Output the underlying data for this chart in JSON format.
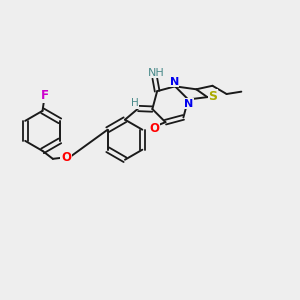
{
  "background_color": "#eeeeee",
  "bond_color": "#1a1a1a",
  "atom_colors": {
    "F": "#cc00cc",
    "O": "#ff0000",
    "N": "#0000ee",
    "S": "#aaaa00",
    "H_gray": "#4a8a8a",
    "C": "#1a1a1a"
  },
  "figsize": [
    3.0,
    3.0
  ],
  "dpi": 100
}
